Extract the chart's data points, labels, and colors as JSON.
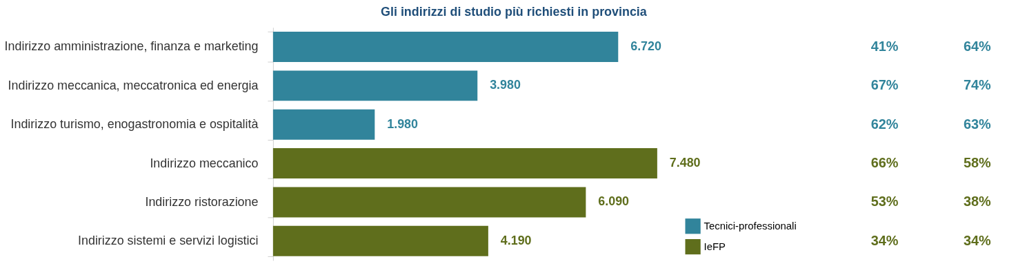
{
  "chart_data": {
    "type": "bar",
    "orientation": "horizontal",
    "title": "Gli indirizzi di studio più richiesti in provincia",
    "categories": [
      "Indirizzo amministrazione, finanza e marketing",
      "Indirizzo meccanica, meccatronica ed energia",
      "Indirizzo turismo, enogastronomia e ospitalità",
      "Indirizzo meccanico",
      "Indirizzo ristorazione",
      "Indirizzo sistemi e servizi logistici"
    ],
    "series": [
      {
        "name": "Tecnici-professionali",
        "color": "#31849b",
        "values": [
          6720,
          3980,
          1980,
          null,
          null,
          null
        ],
        "value_labels": [
          "6.720",
          "3.980",
          "1.980",
          null,
          null,
          null
        ]
      },
      {
        "name": "IeFP",
        "color": "#5f6e1c",
        "values": [
          null,
          null,
          null,
          7480,
          6090,
          4190
        ],
        "value_labels": [
          null,
          null,
          null,
          "7.480",
          "6.090",
          "4.190"
        ]
      }
    ],
    "legend": "bottom right",
    "tick_labels": "y",
    "annotations": [
      "41%",
      "64%",
      "67%",
      "74%",
      "62%",
      "63%",
      "66%",
      "58%",
      "53%",
      "38%",
      "34%",
      "34%"
    ]
  }
}
